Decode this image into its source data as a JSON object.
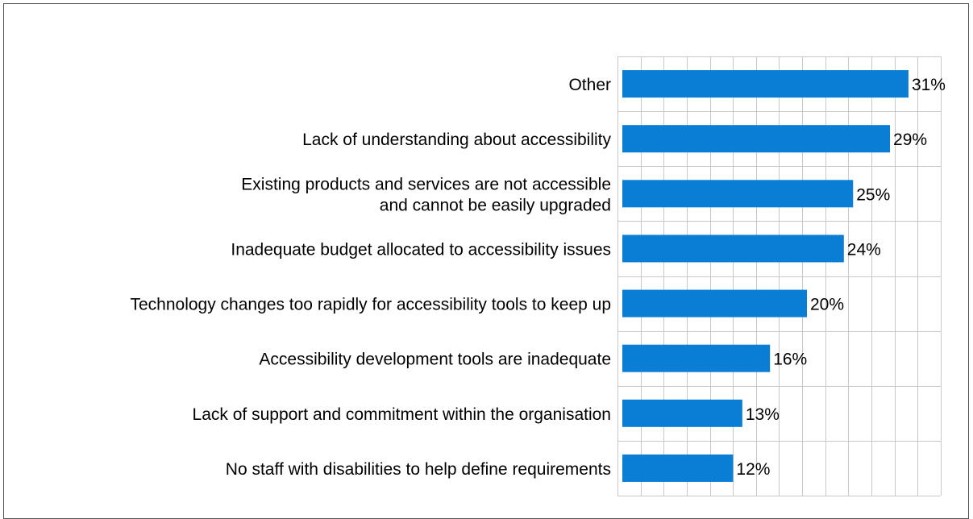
{
  "chart_data": {
    "type": "bar",
    "orientation": "horizontal",
    "categories": [
      [
        "Other"
      ],
      [
        "Lack of understanding about accessibility"
      ],
      [
        "Existing products and services are not accessible",
        "and cannot be easily upgraded"
      ],
      [
        "Inadequate budget allocated to accessibility issues"
      ],
      [
        "Technology changes too rapidly for accessibility tools to keep up"
      ],
      [
        "Accessibility development tools are inadequate"
      ],
      [
        "Lack of support and commitment within the organisation"
      ],
      [
        "No staff with disabilities to help define requirements"
      ]
    ],
    "values": [
      31,
      29,
      25,
      24,
      20,
      16,
      13,
      12
    ],
    "value_labels": [
      "31%",
      "29%",
      "25%",
      "24%",
      "20%",
      "16%",
      "13%",
      "12%"
    ],
    "xlim": [
      0,
      35
    ],
    "grid": true,
    "bar_color": "#0a7dd4",
    "grid_color": "#c8c8c8"
  }
}
